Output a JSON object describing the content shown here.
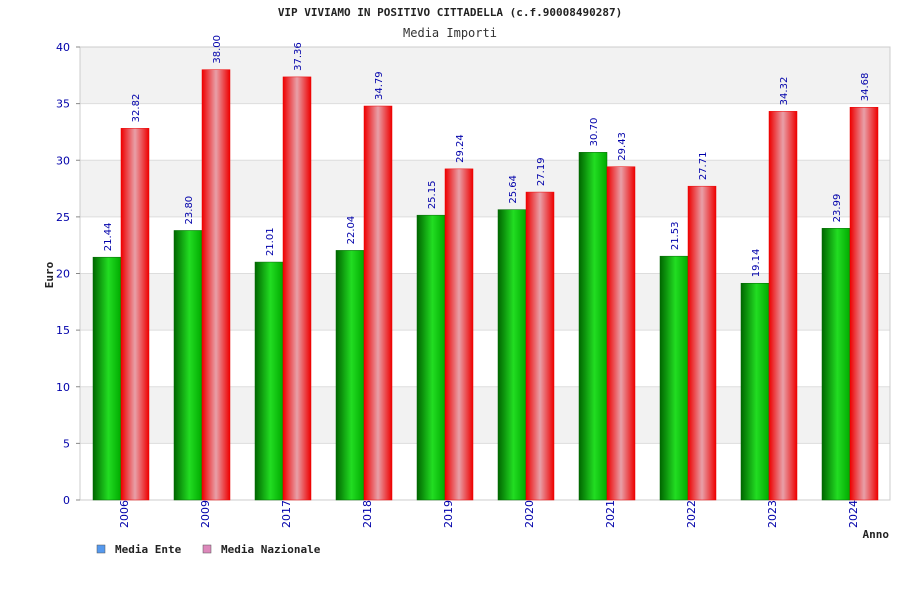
{
  "chart_data": {
    "type": "bar",
    "title": "VIP VIVIAMO IN POSITIVO CITTADELLA (c.f.90008490287)",
    "subtitle": "Media Importi",
    "xlabel": "Anno",
    "ylabel": "Euro",
    "ylim": [
      0,
      40
    ],
    "yticks": [
      "0",
      "5",
      "10",
      "15",
      "20",
      "25",
      "30",
      "35",
      "40"
    ],
    "categories": [
      "2006",
      "2009",
      "2017",
      "2018",
      "2019",
      "2020",
      "2021",
      "2022",
      "2023",
      "2024"
    ],
    "series": [
      {
        "name": "Media Ente",
        "values": [
          21.44,
          23.8,
          21.01,
          22.04,
          25.15,
          25.64,
          30.7,
          21.53,
          19.14,
          23.99
        ],
        "labels": [
          "21.44",
          "23.80",
          "21.01",
          "22.04",
          "25.15",
          "25.64",
          "30.70",
          "21.53",
          "19.14",
          "23.99"
        ]
      },
      {
        "name": "Media Nazionale",
        "values": [
          32.82,
          38.0,
          37.36,
          34.79,
          29.24,
          27.19,
          29.43,
          27.71,
          34.32,
          34.68
        ],
        "labels": [
          "32.82",
          "38.00",
          "37.36",
          "34.79",
          "29.24",
          "27.19",
          "29.43",
          "27.71",
          "34.32",
          "34.68"
        ]
      }
    ],
    "legend": [
      {
        "label": "Media Ente",
        "color": "#5599ee"
      },
      {
        "label": "Media Nazionale",
        "color": "#dd88bb"
      }
    ],
    "colors": {
      "ente_dark": "#006600",
      "ente_light": "#22dd22",
      "naz_dark": "#ee0000",
      "naz_light": "#e8a0a8"
    }
  }
}
